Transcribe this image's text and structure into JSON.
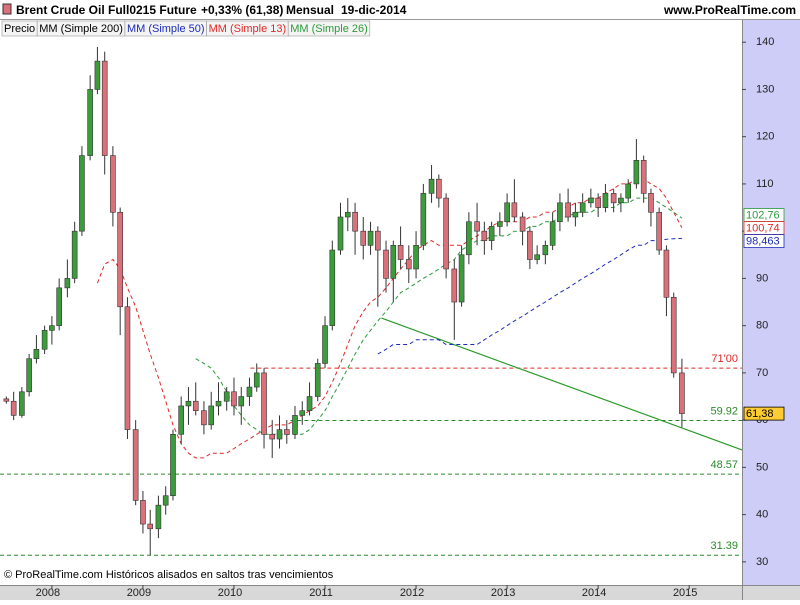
{
  "chart_data": {
    "type": "candlestick",
    "title": "Brent Crude Oil Full0215 Future",
    "change": "+0,33% (61,38)",
    "period": "Mensual",
    "date": "19-dic-2014",
    "source": "www.ProRealTime.com",
    "footer": "© ProRealTime.com  Históricos alisados en saltos tras vencimientos",
    "xlim": [
      2007.43,
      2015.58
    ],
    "xticks": [
      2008,
      2009,
      2010,
      2011,
      2012,
      2013,
      2014,
      2015
    ],
    "ylim": [
      25.1,
      144.7
    ],
    "yticks": [
      30,
      40,
      50,
      60,
      70,
      80,
      90,
      100,
      110,
      120,
      130,
      140
    ],
    "x": [
      2007.5,
      2007.58,
      2007.67,
      2007.75,
      2007.83,
      2007.92,
      2008.0,
      2008.08,
      2008.17,
      2008.25,
      2008.33,
      2008.42,
      2008.5,
      2008.58,
      2008.67,
      2008.75,
      2008.83,
      2008.92,
      2009.0,
      2009.08,
      2009.17,
      2009.25,
      2009.33,
      2009.42,
      2009.5,
      2009.58,
      2009.67,
      2009.75,
      2009.83,
      2009.92,
      2010.0,
      2010.08,
      2010.17,
      2010.25,
      2010.33,
      2010.42,
      2010.5,
      2010.58,
      2010.67,
      2010.75,
      2010.83,
      2010.92,
      2011.0,
      2011.08,
      2011.17,
      2011.25,
      2011.33,
      2011.42,
      2011.5,
      2011.58,
      2011.67,
      2011.75,
      2011.83,
      2011.92,
      2012.0,
      2012.08,
      2012.17,
      2012.25,
      2012.33,
      2012.42,
      2012.5,
      2012.58,
      2012.67,
      2012.75,
      2012.83,
      2012.92,
      2013.0,
      2013.08,
      2013.17,
      2013.25,
      2013.33,
      2013.42,
      2013.5,
      2013.58,
      2013.67,
      2013.75,
      2013.83,
      2013.92,
      2014.0,
      2014.08,
      2014.17,
      2014.25,
      2014.33,
      2014.42,
      2014.5,
      2014.58,
      2014.67,
      2014.75,
      2014.83,
      2014.92
    ],
    "price": {
      "name": "Precio",
      "legend_color": "#000000",
      "up_color": "#3c9c3c",
      "down_color": "#d9707a",
      "last_label": "61,38",
      "label_color": "#ffcc33",
      "open": [
        64.5,
        64,
        61,
        66,
        73,
        75,
        79,
        80,
        88,
        90,
        100,
        116,
        130,
        136,
        116,
        104,
        84,
        58,
        43,
        38,
        37,
        42,
        44,
        57,
        63,
        64,
        62,
        59,
        63,
        64,
        66,
        63,
        65,
        67,
        70,
        57,
        56,
        58,
        57,
        61,
        62,
        65,
        72,
        80,
        96,
        103,
        104,
        100,
        97,
        100,
        96,
        90,
        97,
        94,
        92,
        97,
        108,
        111,
        107,
        92,
        85,
        95,
        102,
        100,
        98,
        101,
        102,
        106,
        103,
        100,
        94,
        95,
        97,
        102,
        106,
        103,
        104,
        106,
        107,
        105,
        108,
        106,
        107,
        110,
        115,
        108,
        104,
        96,
        86,
        70
      ],
      "high": [
        65,
        66,
        67,
        74,
        78,
        80,
        82,
        90,
        94,
        102,
        118,
        133,
        139,
        138,
        118,
        105,
        86,
        60,
        45,
        41,
        44,
        46,
        58,
        65,
        67,
        68,
        64,
        66,
        68,
        67,
        69,
        67,
        69,
        72,
        71,
        60,
        61,
        60,
        63,
        64,
        68,
        73,
        82,
        98,
        106,
        107,
        106,
        103,
        102,
        101,
        98,
        98,
        101,
        97,
        100,
        110,
        114,
        112,
        108,
        94,
        97,
        104,
        106,
        102,
        102,
        104,
        108,
        111,
        104,
        101,
        97,
        98,
        104,
        108,
        109,
        106,
        108,
        109,
        108,
        110,
        109,
        108,
        111,
        119.5,
        116,
        109,
        105,
        97,
        87,
        73
      ],
      "low": [
        63.5,
        60,
        60.5,
        65,
        72,
        74,
        76,
        79,
        86,
        89,
        99,
        115,
        129,
        112,
        101,
        78,
        56,
        42,
        36,
        31.4,
        35,
        40,
        43,
        55,
        59,
        61,
        57,
        58,
        61,
        62,
        61,
        59,
        63,
        66,
        54,
        52,
        54,
        55,
        56,
        59,
        61,
        64,
        71,
        79,
        95,
        100,
        95,
        94,
        95,
        84,
        87,
        85,
        92,
        89,
        90,
        96,
        106,
        105,
        90,
        77,
        84,
        93,
        97,
        95,
        96,
        99,
        101,
        102,
        97,
        92,
        93,
        93,
        96,
        100,
        102,
        101,
        103,
        105,
        103,
        104,
        104,
        104,
        106,
        109,
        106,
        101,
        95,
        82,
        69,
        58.5
      ],
      "close": [
        64,
        61,
        66,
        73,
        75,
        79,
        80,
        88,
        90,
        100,
        116,
        130,
        136,
        116,
        104,
        84,
        58,
        43,
        38,
        37,
        42,
        44,
        57,
        63,
        64,
        62,
        59,
        63,
        64,
        66,
        63,
        65,
        67,
        70,
        57,
        56,
        58,
        57,
        61,
        62,
        65,
        72,
        80,
        96,
        103,
        104,
        100,
        97,
        100,
        96,
        90,
        97,
        94,
        92,
        97,
        108,
        111,
        107,
        92,
        85,
        95,
        102,
        100,
        98,
        101,
        102,
        106,
        103,
        100,
        94,
        95,
        97,
        102,
        106,
        103,
        104,
        106,
        107,
        105,
        108,
        106,
        107,
        110,
        115,
        108,
        104,
        96,
        86,
        70,
        61.38
      ]
    },
    "hidden_series": {
      "name": "MM (Simple 200)",
      "color": "#000000"
    },
    "series": [
      {
        "name": "MM (Simple 50)",
        "color": "#1c2bb8",
        "last_label": "98,463",
        "values": [
          null,
          null,
          null,
          null,
          null,
          null,
          null,
          null,
          null,
          null,
          null,
          null,
          null,
          null,
          null,
          null,
          null,
          null,
          null,
          null,
          null,
          null,
          null,
          null,
          null,
          null,
          null,
          null,
          null,
          null,
          null,
          null,
          null,
          null,
          null,
          null,
          null,
          null,
          null,
          null,
          null,
          null,
          null,
          null,
          null,
          null,
          null,
          null,
          null,
          74,
          75,
          76,
          76,
          76,
          77,
          77,
          77,
          77,
          76,
          76,
          76,
          76,
          76,
          77,
          78,
          79,
          80,
          81,
          82,
          83,
          84,
          85,
          86,
          87,
          88,
          89,
          90,
          91,
          92,
          93,
          94,
          95,
          96,
          97,
          97,
          98,
          98,
          98.3,
          98.4,
          98.463
        ]
      },
      {
        "name": "MM (Simple 13)",
        "color": "#e02828",
        "last_label": "100,74",
        "values": [
          null,
          null,
          null,
          null,
          null,
          null,
          null,
          null,
          null,
          null,
          null,
          null,
          89,
          93,
          94,
          92,
          88,
          84,
          79,
          74,
          69,
          64,
          59,
          55,
          53,
          52,
          52,
          53,
          53,
          53,
          54,
          55,
          56,
          57,
          58,
          59,
          59,
          59,
          60,
          61,
          62,
          63,
          65,
          68,
          72,
          76,
          80,
          83,
          85,
          86,
          88,
          90,
          92,
          94,
          96,
          97,
          98,
          97,
          97,
          97,
          97,
          98,
          99,
          100,
          101,
          102,
          102,
          102,
          102,
          103,
          103,
          104,
          104,
          105,
          105,
          106,
          106,
          107,
          107,
          108,
          109,
          110,
          110,
          111,
          111,
          110,
          109,
          107,
          104,
          100.74
        ]
      },
      {
        "name": "MM (Simple 26)",
        "color": "#2a9a3a",
        "last_label": "102,76",
        "values": [
          null,
          null,
          null,
          null,
          null,
          null,
          null,
          null,
          null,
          null,
          null,
          null,
          null,
          null,
          null,
          null,
          null,
          null,
          null,
          null,
          null,
          null,
          null,
          null,
          null,
          73,
          72,
          71,
          69,
          66,
          63,
          61,
          59,
          58,
          57,
          57,
          57,
          57,
          57,
          57,
          58,
          60,
          62,
          65,
          68,
          71,
          74,
          77,
          79,
          81,
          83,
          85,
          87,
          88,
          89,
          90,
          91,
          92,
          93,
          94,
          96,
          97,
          98,
          98,
          99,
          99,
          99,
          100,
          100,
          101,
          101,
          102,
          102,
          103,
          103,
          104,
          104,
          104,
          105,
          105,
          105,
          106,
          106,
          107,
          107,
          107,
          106,
          105,
          104,
          102.76
        ]
      }
    ],
    "levels": [
      {
        "value": 71,
        "label": "71'00",
        "color": "#e02828",
        "from": 2010.18
      },
      {
        "value": 59.92,
        "color": "#2a8a2a",
        "from": 2010.62
      },
      {
        "value": 48.57,
        "color": "#2a8a2a"
      },
      {
        "value": 31.39,
        "color": "#2a8a2a"
      }
    ],
    "trendline": {
      "start": [
        2011.62,
        81.6
      ],
      "end": [
        2015.58,
        53.7
      ],
      "color": "#2a9a2a"
    }
  }
}
